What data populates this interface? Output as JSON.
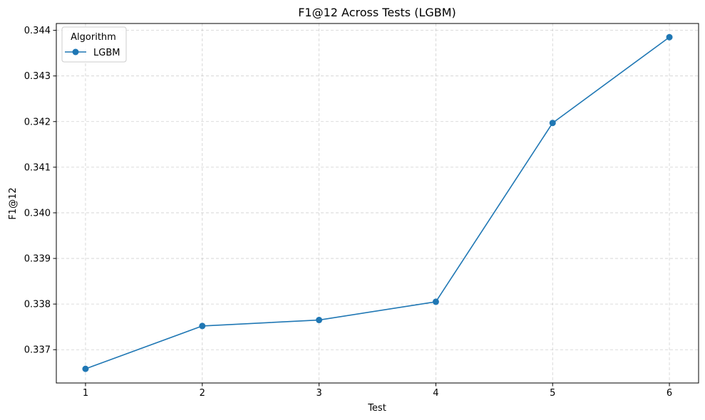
{
  "chart_data": {
    "type": "line",
    "title": "F1@12 Across Tests (LGBM)",
    "xlabel": "Test",
    "ylabel": "F1@12",
    "x": [
      1,
      2,
      3,
      4,
      5,
      6
    ],
    "series": [
      {
        "name": "LGBM",
        "color": "#1f77b4",
        "marker": "circle",
        "values": [
          0.33658,
          0.33752,
          0.33765,
          0.33805,
          0.34197,
          0.34385
        ]
      }
    ],
    "xlim": [
      0.75,
      6.25
    ],
    "ylim": [
      0.33627,
      0.34415
    ],
    "xticks": [
      1,
      2,
      3,
      4,
      5,
      6
    ],
    "xtick_labels": [
      "1",
      "2",
      "3",
      "4",
      "5",
      "6"
    ],
    "yticks": [
      0.337,
      0.338,
      0.339,
      0.34,
      0.341,
      0.342,
      0.343,
      0.344
    ],
    "ytick_labels": [
      "0.337",
      "0.338",
      "0.339",
      "0.340",
      "0.341",
      "0.342",
      "0.343",
      "0.344"
    ],
    "grid": true,
    "grid_style": "dashed",
    "legend": {
      "title": "Algorithm",
      "placement": "upper-left"
    }
  }
}
